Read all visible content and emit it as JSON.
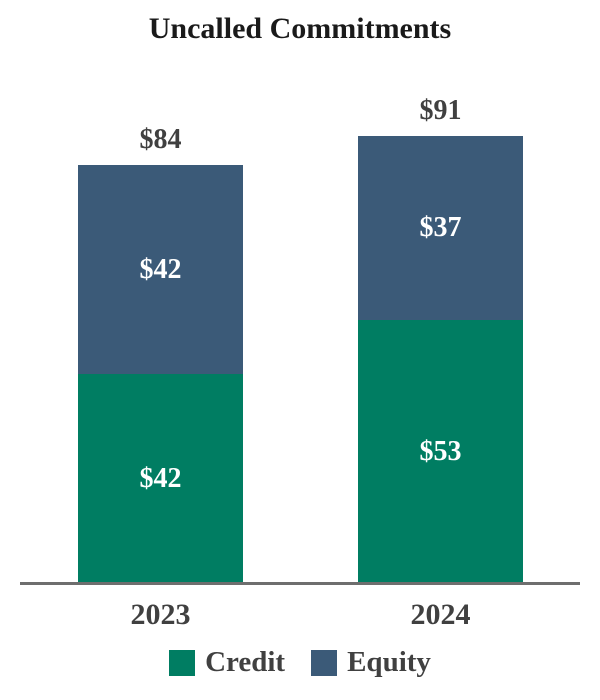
{
  "chart_data": {
    "type": "bar",
    "stacked": true,
    "title": "Uncalled Commitments",
    "categories": [
      "2023",
      "2024"
    ],
    "series": [
      {
        "name": "Credit",
        "color": "#007D62",
        "values": [
          42,
          53
        ]
      },
      {
        "name": "Equity",
        "color": "#3B5A78",
        "values": [
          42,
          37
        ]
      }
    ],
    "totals": [
      84,
      91
    ],
    "value_prefix": "$",
    "segment_labels": [
      [
        "$42",
        "$42"
      ],
      [
        "$53",
        "$37"
      ]
    ],
    "total_labels": [
      "$84",
      "$91"
    ],
    "legend_position": "bottom",
    "grid": false,
    "y_axis_visible": false,
    "colors": {
      "title": "#1A1A1A",
      "segment_label": "#FFFFFF",
      "total_label": "#404040",
      "axis_label": "#404040",
      "legend_label": "#404040",
      "axis_line": "#6E6E6E"
    }
  }
}
